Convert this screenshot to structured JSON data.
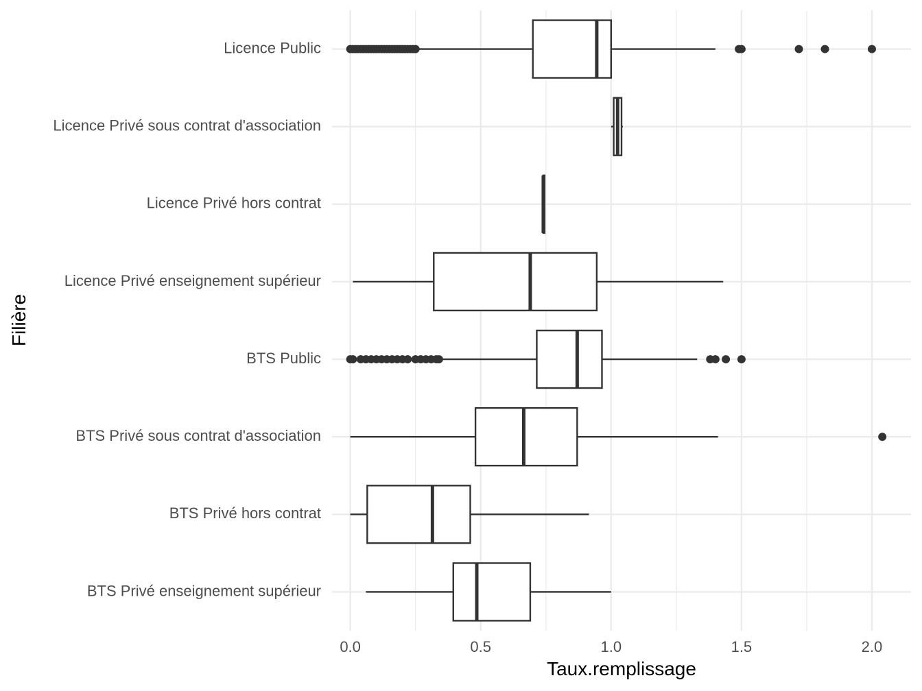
{
  "chart_data": {
    "type": "boxplot",
    "orientation": "horizontal",
    "title": "",
    "xlabel": "Taux.remplissage",
    "ylabel": "Filière",
    "xlim": [
      -0.07,
      2.15
    ],
    "x_ticks": [
      0.0,
      0.5,
      1.0,
      1.5,
      2.0
    ],
    "x_tick_labels": [
      "0.0",
      "0.5",
      "1.0",
      "1.5",
      "2.0"
    ],
    "grid": true,
    "legend": "none",
    "colors": {
      "box_stroke": "#333333",
      "box_fill": "#ffffff",
      "grid": "#ebebeb",
      "tick_text": "#4d4d4d"
    },
    "categories": [
      "Licence Public",
      "Licence Privé sous contrat d'association",
      "Licence Privé hors contrat",
      "Licence Privé enseignement supérieur",
      "BTS Public",
      "BTS Privé sous contrat d'association",
      "BTS Privé hors contrat",
      "BTS Privé enseignement supérieur"
    ],
    "boxes": [
      {
        "category": "Licence Public",
        "whisker_low": 0.26,
        "q1": 0.7,
        "median": 0.945,
        "q3": 1.0,
        "whisker_high": 1.4,
        "outliers": [
          0.0,
          0.01,
          0.02,
          0.03,
          0.04,
          0.05,
          0.06,
          0.07,
          0.08,
          0.09,
          0.1,
          0.11,
          0.12,
          0.13,
          0.14,
          0.15,
          0.16,
          0.17,
          0.18,
          0.19,
          0.2,
          0.21,
          0.22,
          0.23,
          0.24,
          0.25,
          1.49,
          1.5,
          1.72,
          1.82,
          2.0
        ]
      },
      {
        "category": "Licence Privé sous contrat d'association",
        "whisker_low": 1.0,
        "q1": 1.01,
        "median": 1.025,
        "q3": 1.04,
        "whisker_high": 1.045,
        "outliers": []
      },
      {
        "category": "Licence Privé hors contrat",
        "whisker_low": 0.74,
        "q1": 0.74,
        "median": 0.74,
        "q3": 0.745,
        "whisker_high": 0.745,
        "outliers": []
      },
      {
        "category": "Licence Privé enseignement supérieur",
        "whisker_low": 0.01,
        "q1": 0.32,
        "median": 0.69,
        "q3": 0.945,
        "whisker_high": 1.43,
        "outliers": []
      },
      {
        "category": "BTS Public",
        "whisker_low": 0.35,
        "q1": 0.715,
        "median": 0.87,
        "q3": 0.965,
        "whisker_high": 1.33,
        "outliers": [
          0.0,
          0.01,
          0.04,
          0.06,
          0.08,
          0.1,
          0.12,
          0.14,
          0.16,
          0.18,
          0.2,
          0.22,
          0.25,
          0.27,
          0.29,
          0.31,
          0.33,
          0.34,
          1.38,
          1.4,
          1.44,
          1.5
        ]
      },
      {
        "category": "BTS Privé sous contrat d'association",
        "whisker_low": 0.0,
        "q1": 0.48,
        "median": 0.665,
        "q3": 0.87,
        "whisker_high": 1.41,
        "outliers": [
          2.04
        ]
      },
      {
        "category": "BTS Privé hors contrat",
        "whisker_low": 0.0,
        "q1": 0.065,
        "median": 0.315,
        "q3": 0.46,
        "whisker_high": 0.915,
        "outliers": []
      },
      {
        "category": "BTS Privé enseignement supérieur",
        "whisker_low": 0.06,
        "q1": 0.395,
        "median": 0.485,
        "q3": 0.69,
        "whisker_high": 1.0,
        "outliers": []
      }
    ]
  }
}
